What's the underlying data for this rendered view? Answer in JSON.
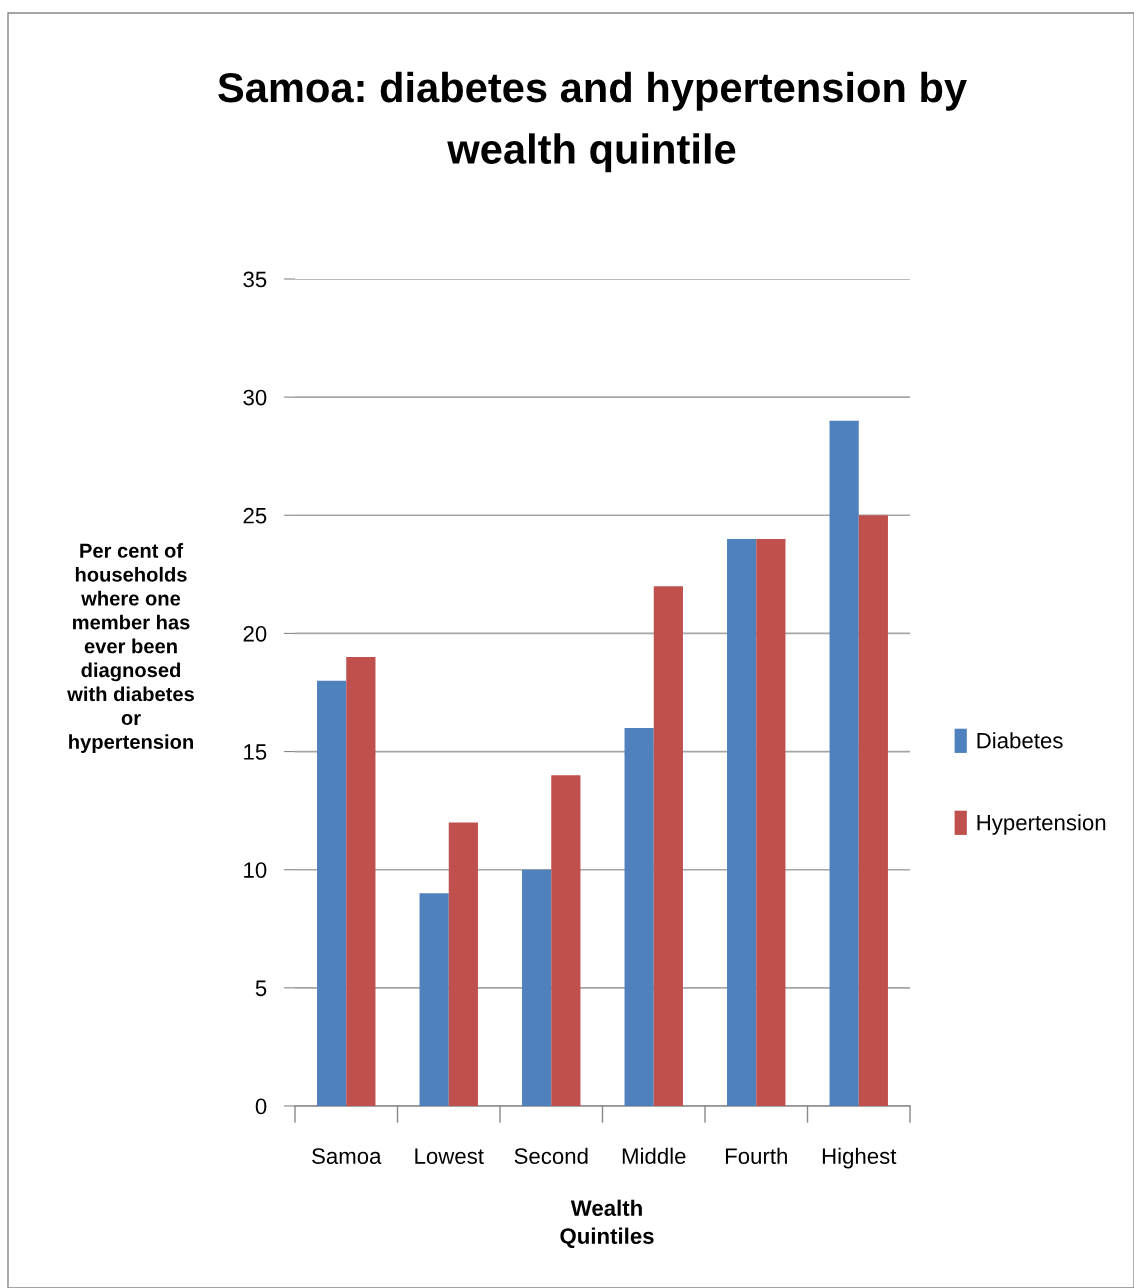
{
  "chart_data": {
    "type": "bar",
    "title": "Samoa: diabetes and hypertension by wealth quintile",
    "xlabel": "Wealth Quintiles",
    "ylabel": "Per cent of households where one member has ever been diagnosed with diabetes or hypertension",
    "categories": [
      "Samoa",
      "Lowest",
      "Second",
      "Middle",
      "Fourth",
      "Highest"
    ],
    "series": [
      {
        "name": "Diabetes",
        "color": "#4f81bd",
        "values": [
          18,
          9,
          10,
          16,
          24,
          29
        ]
      },
      {
        "name": "Hypertension",
        "color": "#c0504d",
        "values": [
          19,
          12,
          14,
          22,
          24,
          25
        ]
      }
    ],
    "ylim": [
      0,
      35
    ],
    "yticks": [
      0,
      5,
      10,
      15,
      20,
      25,
      30,
      35
    ],
    "grid": "y",
    "legend": "right"
  }
}
